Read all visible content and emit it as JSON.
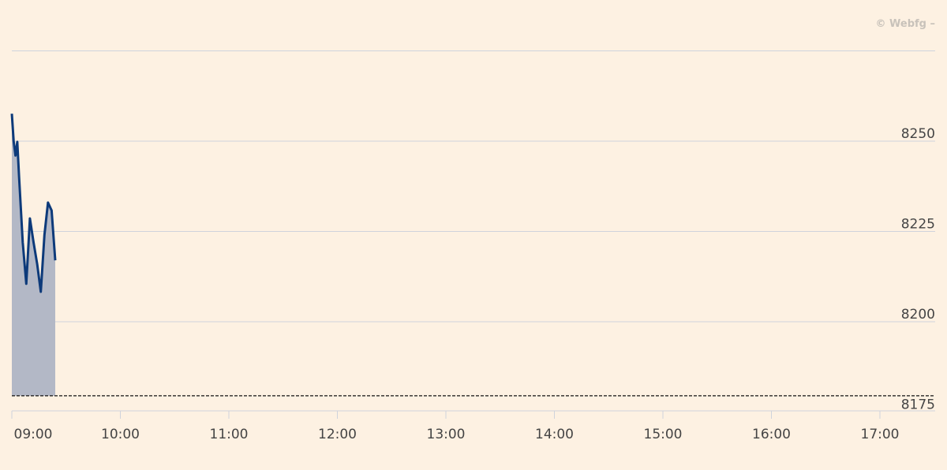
{
  "credit": "© Webfg –",
  "chart_data": {
    "type": "area",
    "x_ticks": [
      "09:00",
      "10:00",
      "11:00",
      "12:00",
      "13:00",
      "14:00",
      "15:00",
      "16:00",
      "17:00"
    ],
    "y_ticks": [
      8175,
      8200,
      8225,
      8250
    ],
    "y_tick_labels": [
      "8175",
      "8200",
      "8225",
      "8250"
    ],
    "xlim": [
      "09:00",
      "17:00"
    ],
    "ylim": [
      8175,
      8275
    ],
    "reference_line": 8179.5,
    "grid": true,
    "colors": {
      "line": "#0d3a7a",
      "fill": "#b3b8c6",
      "grid": "#cfd3dc",
      "background": "#fdf1e2"
    },
    "series": [
      {
        "x": [
          "09:00",
          "09:01",
          "09:02",
          "09:03",
          "09:04",
          "09:06",
          "09:08",
          "09:10",
          "09:12",
          "09:14",
          "09:16",
          "09:18",
          "09:20",
          "09:22",
          "09:24"
        ],
        "y": [
          8257.6,
          8250,
          8246,
          8249.8,
          8240,
          8222,
          8210.5,
          8228.6,
          8222,
          8216,
          8208.3,
          8224,
          8233,
          8230.8,
          8217
        ]
      }
    ]
  }
}
